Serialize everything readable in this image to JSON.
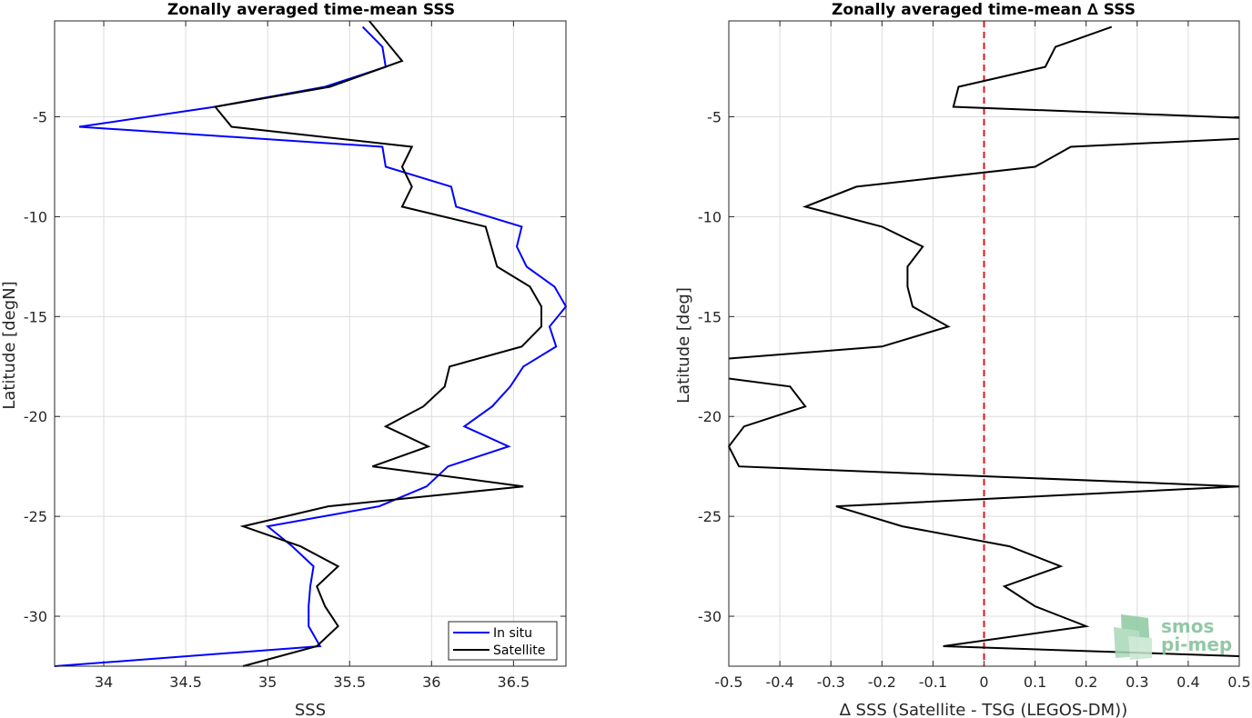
{
  "chart_data": [
    {
      "type": "line",
      "title": "Zonally averaged time-mean SSS",
      "xlabel": "SSS",
      "ylabel": "Latitude [degN]",
      "xlim": [
        33.7,
        36.82
      ],
      "ylim": [
        -32.5,
        -0.2
      ],
      "xticks": [
        34,
        34.5,
        35,
        35.5,
        36,
        36.5
      ],
      "yticks": [
        -5,
        -10,
        -15,
        -20,
        -25,
        -30
      ],
      "grid": true,
      "legend": "bottom-right",
      "series": [
        {
          "name": "In situ",
          "color": "#0000ff",
          "points": [
            [
              35.58,
              -0.5
            ],
            [
              35.7,
              -1.5
            ],
            [
              35.72,
              -2.5
            ],
            [
              35.35,
              -3.5
            ],
            [
              34.68,
              -4.5
            ],
            [
              33.85,
              -5.5
            ],
            [
              35.7,
              -6.5
            ],
            [
              35.72,
              -7.5
            ],
            [
              36.12,
              -8.5
            ],
            [
              36.15,
              -9.5
            ],
            [
              36.55,
              -10.5
            ],
            [
              36.52,
              -11.5
            ],
            [
              36.58,
              -12.5
            ],
            [
              36.75,
              -13.5
            ],
            [
              36.82,
              -14.5
            ],
            [
              36.72,
              -15.5
            ],
            [
              36.76,
              -16.5
            ],
            [
              36.56,
              -17.5
            ],
            [
              36.48,
              -18.5
            ],
            [
              36.37,
              -19.5
            ],
            [
              36.2,
              -20.5
            ],
            [
              36.47,
              -21.5
            ],
            [
              36.1,
              -22.5
            ],
            [
              35.97,
              -23.5
            ],
            [
              35.68,
              -24.5
            ],
            [
              35.0,
              -25.5
            ],
            [
              35.15,
              -26.5
            ],
            [
              35.28,
              -27.5
            ],
            [
              35.26,
              -28.5
            ],
            [
              35.25,
              -29.5
            ],
            [
              35.25,
              -30.5
            ],
            [
              35.32,
              -31.5
            ],
            [
              33.7,
              -32.5
            ]
          ]
        },
        {
          "name": "Satellite",
          "color": "#000000",
          "points": [
            [
              35.62,
              -0.2
            ],
            [
              35.82,
              -2.2
            ],
            [
              35.38,
              -3.5
            ],
            [
              34.68,
              -4.5
            ],
            [
              34.78,
              -5.5
            ],
            [
              35.88,
              -6.5
            ],
            [
              35.82,
              -7.5
            ],
            [
              35.88,
              -8.5
            ],
            [
              35.82,
              -9.5
            ],
            [
              36.33,
              -10.5
            ],
            [
              36.4,
              -12.5
            ],
            [
              36.6,
              -13.5
            ],
            [
              36.67,
              -14.5
            ],
            [
              36.67,
              -15.5
            ],
            [
              36.55,
              -16.5
            ],
            [
              36.11,
              -17.5
            ],
            [
              36.08,
              -18.5
            ],
            [
              35.95,
              -19.5
            ],
            [
              35.72,
              -20.5
            ],
            [
              35.98,
              -21.5
            ],
            [
              35.64,
              -22.5
            ],
            [
              36.56,
              -23.5
            ],
            [
              35.37,
              -24.5
            ],
            [
              34.85,
              -25.5
            ],
            [
              35.2,
              -26.5
            ],
            [
              35.43,
              -27.5
            ],
            [
              35.3,
              -28.5
            ],
            [
              35.35,
              -29.5
            ],
            [
              35.43,
              -30.5
            ],
            [
              35.3,
              -31.5
            ],
            [
              34.85,
              -32.5
            ]
          ]
        }
      ]
    },
    {
      "type": "line",
      "title": "Zonally averaged time-mean ∆ SSS",
      "xlabel": "∆ SSS (Satellite - TSG (LEGOS-DM))",
      "ylabel": "Latitude [deg]",
      "xlim": [
        -0.5,
        0.5
      ],
      "ylim": [
        -32.5,
        -0.2
      ],
      "xticks": [
        -0.5,
        -0.4,
        -0.3,
        -0.2,
        -0.1,
        0,
        0.1,
        0.2,
        0.3,
        0.4,
        0.5
      ],
      "yticks": [
        -5,
        -10,
        -15,
        -20,
        -25,
        -30
      ],
      "grid": true,
      "reference_line": {
        "x": 0,
        "color": "#e0141e",
        "style": "dashed"
      },
      "series": [
        {
          "name": "",
          "color": "#000000",
          "points": [
            [
              0.25,
              -0.5
            ],
            [
              0.14,
              -1.5
            ],
            [
              0.12,
              -2.5
            ],
            [
              -0.05,
              -3.5
            ],
            [
              -0.06,
              -4.5
            ],
            [
              0.5,
              -5.05
            ],
            [
              null,
              null
            ],
            [
              0.5,
              -6.1
            ],
            [
              0.17,
              -6.5
            ],
            [
              0.1,
              -7.5
            ],
            [
              -0.25,
              -8.5
            ],
            [
              -0.35,
              -9.5
            ],
            [
              -0.2,
              -10.5
            ],
            [
              -0.12,
              -11.5
            ],
            [
              -0.15,
              -12.5
            ],
            [
              -0.15,
              -13.5
            ],
            [
              -0.14,
              -14.5
            ],
            [
              -0.07,
              -15.5
            ],
            [
              -0.2,
              -16.5
            ],
            [
              -0.5,
              -17.1
            ],
            [
              null,
              null
            ],
            [
              -0.5,
              -18.1
            ],
            [
              -0.38,
              -18.5
            ],
            [
              -0.35,
              -19.5
            ],
            [
              -0.47,
              -20.5
            ],
            [
              -0.5,
              -21.5
            ],
            [
              -0.48,
              -22.5
            ],
            [
              0.5,
              -23.5
            ],
            [
              -0.29,
              -24.5
            ],
            [
              -0.16,
              -25.5
            ],
            [
              0.05,
              -26.5
            ],
            [
              0.15,
              -27.5
            ],
            [
              0.04,
              -28.5
            ],
            [
              0.1,
              -29.5
            ],
            [
              0.2,
              -30.5
            ],
            [
              -0.08,
              -31.5
            ],
            [
              0.5,
              -32.0
            ]
          ]
        }
      ]
    }
  ],
  "logo": {
    "line1": "smos",
    "line2": "pi-mep",
    "color": "#7fbf96"
  }
}
